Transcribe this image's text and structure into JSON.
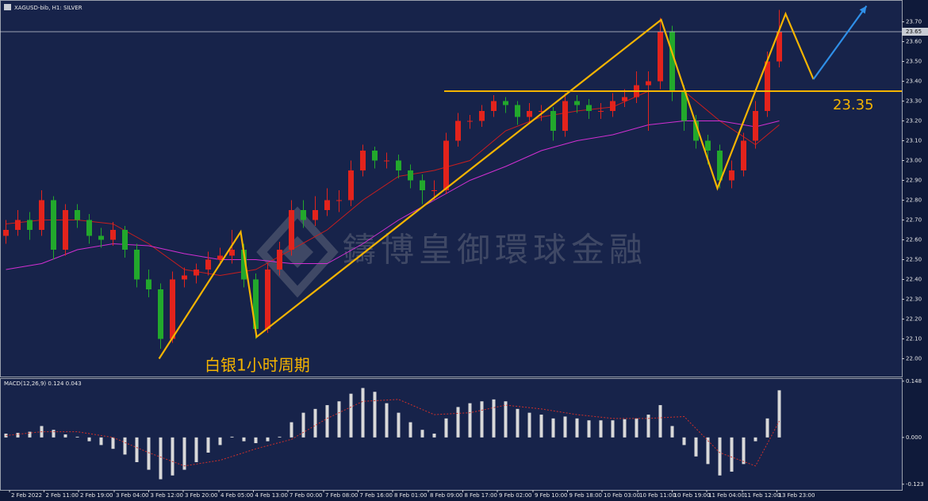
{
  "chart_data": {
    "type": "candlestick",
    "title": "XAGUSD-bib, H1: SILVER",
    "up_color": "#e3231c",
    "down_color": "#22a82c",
    "xlim": [
      -0.5,
      75.3
    ],
    "ylim": [
      21.91,
      23.81
    ],
    "yticks": [
      {
        "value": 22.0,
        "label": "22.00"
      },
      {
        "value": 22.1,
        "label": "22.10"
      },
      {
        "value": 22.2,
        "label": "22.20"
      },
      {
        "value": 22.3,
        "label": "22.30"
      },
      {
        "value": 22.4,
        "label": "22.40"
      },
      {
        "value": 22.5,
        "label": "22.50"
      },
      {
        "value": 22.6,
        "label": "22.60"
      },
      {
        "value": 22.7,
        "label": "22.70"
      },
      {
        "value": 22.8,
        "label": "22.80"
      },
      {
        "value": 22.9,
        "label": "22.90"
      },
      {
        "value": 23.0,
        "label": "23.00"
      },
      {
        "value": 23.1,
        "label": "23.10"
      },
      {
        "value": 23.2,
        "label": "23.20"
      },
      {
        "value": 23.3,
        "label": "23.30"
      },
      {
        "value": 23.4,
        "label": "23.40"
      },
      {
        "value": 23.5,
        "label": "23.50"
      },
      {
        "value": 23.6,
        "label": "23.60"
      },
      {
        "value": 23.7,
        "label": "23.70"
      }
    ],
    "xticks": [
      {
        "value": 0.3,
        "label": "2 Feb 2022"
      },
      {
        "value": 3.2,
        "label": "2 Feb 11:00"
      },
      {
        "value": 6.1,
        "label": "2 Feb 19:00"
      },
      {
        "value": 9.1,
        "label": "3 Feb 04:00"
      },
      {
        "value": 12.0,
        "label": "3 Feb 12:00"
      },
      {
        "value": 14.9,
        "label": "3 Feb 20:00"
      },
      {
        "value": 17.9,
        "label": "4 Feb 05:00"
      },
      {
        "value": 20.8,
        "label": "4 Feb 13:00"
      },
      {
        "value": 23.7,
        "label": "7 Feb 00:00"
      },
      {
        "value": 26.7,
        "label": "7 Feb 08:00"
      },
      {
        "value": 29.6,
        "label": "7 Feb 16:00"
      },
      {
        "value": 32.5,
        "label": "8 Feb 01:00"
      },
      {
        "value": 35.5,
        "label": "8 Feb 09:00"
      },
      {
        "value": 38.4,
        "label": "8 Feb 17:00"
      },
      {
        "value": 41.3,
        "label": "9 Feb 02:00"
      },
      {
        "value": 44.3,
        "label": "9 Feb 10:00"
      },
      {
        "value": 47.2,
        "label": "9 Feb 18:00"
      },
      {
        "value": 50.1,
        "label": "10 Feb 03:00"
      },
      {
        "value": 53.1,
        "label": "10 Feb 11:00"
      },
      {
        "value": 56.0,
        "label": "10 Feb 19:00"
      },
      {
        "value": 58.9,
        "label": "11 Feb 04:00"
      },
      {
        "value": 61.9,
        "label": "11 Feb 12:00"
      },
      {
        "value": 64.8,
        "label": "13 Feb 23:00"
      }
    ],
    "ohlc": [
      [
        22.62,
        22.7,
        22.58,
        22.65
      ],
      [
        22.65,
        22.75,
        22.62,
        22.7
      ],
      [
        22.7,
        22.74,
        22.6,
        22.65
      ],
      [
        22.65,
        22.85,
        22.62,
        22.8
      ],
      [
        22.8,
        22.82,
        22.5,
        22.55
      ],
      [
        22.55,
        22.78,
        22.52,
        22.75
      ],
      [
        22.75,
        22.78,
        22.66,
        22.7
      ],
      [
        22.7,
        22.73,
        22.58,
        22.62
      ],
      [
        22.62,
        22.66,
        22.56,
        22.6
      ],
      [
        22.6,
        22.69,
        22.57,
        22.65
      ],
      [
        22.65,
        22.67,
        22.51,
        22.55
      ],
      [
        22.55,
        22.58,
        22.36,
        22.4
      ],
      [
        22.4,
        22.45,
        22.31,
        22.35
      ],
      [
        22.35,
        22.38,
        22.05,
        22.1
      ],
      [
        22.1,
        22.44,
        22.08,
        22.4
      ],
      [
        22.4,
        22.46,
        22.36,
        22.42
      ],
      [
        22.42,
        22.48,
        22.38,
        22.45
      ],
      [
        22.45,
        22.54,
        22.42,
        22.5
      ],
      [
        22.5,
        22.56,
        22.47,
        22.52
      ],
      [
        22.52,
        22.65,
        22.48,
        22.55
      ],
      [
        22.55,
        22.58,
        22.36,
        22.4
      ],
      [
        22.4,
        22.43,
        22.1,
        22.15
      ],
      [
        22.15,
        22.48,
        22.13,
        22.45
      ],
      [
        22.45,
        22.59,
        22.42,
        22.55
      ],
      [
        22.55,
        22.8,
        22.52,
        22.75
      ],
      [
        22.75,
        22.8,
        22.66,
        22.7
      ],
      [
        22.7,
        22.82,
        22.67,
        22.75
      ],
      [
        22.75,
        22.86,
        22.72,
        22.8
      ],
      [
        22.8,
        22.85,
        22.74,
        22.8
      ],
      [
        22.8,
        23.0,
        22.77,
        22.95
      ],
      [
        22.95,
        23.08,
        22.92,
        23.05
      ],
      [
        23.05,
        23.07,
        22.96,
        23.0
      ],
      [
        23.0,
        23.04,
        22.96,
        23.0
      ],
      [
        23.0,
        23.03,
        22.91,
        22.95
      ],
      [
        22.95,
        22.98,
        22.86,
        22.9
      ],
      [
        22.9,
        22.93,
        22.78,
        22.85
      ],
      [
        22.85,
        22.9,
        22.8,
        22.85
      ],
      [
        22.85,
        23.14,
        22.83,
        23.1
      ],
      [
        23.1,
        23.24,
        23.07,
        23.2
      ],
      [
        23.2,
        23.23,
        23.16,
        23.2
      ],
      [
        23.2,
        23.28,
        23.17,
        23.25
      ],
      [
        23.25,
        23.33,
        23.22,
        23.3
      ],
      [
        23.3,
        23.32,
        23.24,
        23.28
      ],
      [
        23.28,
        23.3,
        23.18,
        23.22
      ],
      [
        23.22,
        23.29,
        23.19,
        23.25
      ],
      [
        23.25,
        23.28,
        23.2,
        23.25
      ],
      [
        23.25,
        23.27,
        23.1,
        23.15
      ],
      [
        23.15,
        23.34,
        23.12,
        23.3
      ],
      [
        23.3,
        23.33,
        23.24,
        23.28
      ],
      [
        23.28,
        23.31,
        23.21,
        23.25
      ],
      [
        23.25,
        23.29,
        23.21,
        23.25
      ],
      [
        23.25,
        23.34,
        23.22,
        23.3
      ],
      [
        23.3,
        23.36,
        23.27,
        23.32
      ],
      [
        23.32,
        23.45,
        23.29,
        23.38
      ],
      [
        23.38,
        23.45,
        23.15,
        23.4
      ],
      [
        23.4,
        23.72,
        23.36,
        23.65
      ],
      [
        23.65,
        23.68,
        23.3,
        23.35
      ],
      [
        23.35,
        23.38,
        23.15,
        23.2
      ],
      [
        23.2,
        23.23,
        23.06,
        23.1
      ],
      [
        23.1,
        23.13,
        22.98,
        23.05
      ],
      [
        23.05,
        23.08,
        22.86,
        22.9
      ],
      [
        22.9,
        23.0,
        22.86,
        22.95
      ],
      [
        22.95,
        23.14,
        22.92,
        23.1
      ],
      [
        23.1,
        23.3,
        23.06,
        23.25
      ],
      [
        23.25,
        23.55,
        23.22,
        23.5
      ],
      [
        23.5,
        23.76,
        23.47,
        23.65
      ]
    ],
    "moving_averages": [
      {
        "color": "#c81e1e",
        "x": [
          0,
          3,
          6,
          9,
          12,
          15,
          18,
          21,
          24,
          27,
          30,
          33,
          36,
          39,
          42,
          45,
          48,
          51,
          54,
          57,
          60,
          63,
          65
        ],
        "values": [
          22.68,
          22.7,
          22.7,
          22.68,
          22.58,
          22.45,
          22.42,
          22.45,
          22.55,
          22.65,
          22.8,
          22.92,
          22.95,
          23.0,
          23.15,
          23.22,
          23.25,
          23.27,
          23.35,
          23.35,
          23.2,
          23.08,
          23.18
        ]
      },
      {
        "color": "#d22fd2",
        "x": [
          0,
          3,
          6,
          9,
          12,
          15,
          18,
          21,
          24,
          27,
          30,
          33,
          36,
          39,
          42,
          45,
          48,
          51,
          54,
          57,
          60,
          63,
          65
        ],
        "values": [
          22.45,
          22.48,
          22.55,
          22.58,
          22.57,
          22.53,
          22.5,
          22.5,
          22.48,
          22.48,
          22.58,
          22.7,
          22.8,
          22.9,
          22.97,
          23.05,
          23.1,
          23.13,
          23.18,
          23.2,
          23.2,
          23.17,
          23.2
        ]
      }
    ],
    "price_line": {
      "value": 23.65,
      "color": "#c8ccd4"
    },
    "level": {
      "value": 23.35,
      "label": "23.35",
      "color": "#f5b400"
    },
    "zigzag": {
      "color": "#f5b400",
      "x": [
        12.87,
        19.73,
        21.07,
        55.07,
        59.8,
        65.53,
        67.87
      ],
      "values": [
        22.0,
        22.64,
        22.11,
        23.71,
        22.86,
        23.74,
        23.41
      ]
    },
    "arrow": {
      "color": "#2f8fe8",
      "x": [
        67.87,
        72.33
      ],
      "values": [
        23.41,
        23.78
      ]
    },
    "caption": "白银1小时周期",
    "watermark": "鑄博皇御環球金融",
    "indicator": {
      "type": "macd",
      "title": "MACD(12,26,9) 0.124 0.043",
      "color": "#d9d9d9",
      "ylim": [
        -0.138,
        0.156
      ],
      "yticks": [
        0.148,
        {
          "value": 0,
          "label": "0.000"
        },
        -0.123
      ],
      "histogram": [
        0.01,
        0.012,
        0.015,
        0.03,
        0.02,
        0.008,
        0.002,
        -0.01,
        -0.02,
        -0.03,
        -0.045,
        -0.065,
        -0.085,
        -0.11,
        -0.1,
        -0.085,
        -0.065,
        -0.04,
        -0.02,
        0.002,
        -0.01,
        -0.015,
        -0.01,
        0.002,
        0.04,
        0.065,
        0.075,
        0.085,
        0.095,
        0.115,
        0.13,
        0.12,
        0.09,
        0.065,
        0.04,
        0.02,
        0.01,
        0.05,
        0.08,
        0.09,
        0.095,
        0.1,
        0.095,
        0.075,
        0.065,
        0.06,
        0.05,
        0.055,
        0.05,
        0.045,
        0.045,
        0.045,
        0.048,
        0.05,
        0.06,
        0.085,
        0.03,
        -0.02,
        -0.05,
        -0.07,
        -0.1,
        -0.09,
        -0.07,
        -0.01,
        0.05,
        0.124
      ],
      "signal": {
        "color": "#d0302a",
        "x": [
          0,
          3,
          6,
          9,
          12,
          15,
          18,
          21,
          24,
          27,
          30,
          33,
          36,
          39,
          42,
          45,
          48,
          51,
          54,
          57,
          60,
          63,
          65
        ],
        "values": [
          0.005,
          0.015,
          0.015,
          0.0,
          -0.04,
          -0.075,
          -0.06,
          -0.03,
          -0.005,
          0.05,
          0.095,
          0.1,
          0.06,
          0.065,
          0.085,
          0.075,
          0.06,
          0.05,
          0.05,
          0.055,
          -0.04,
          -0.075,
          0.043
        ]
      }
    }
  }
}
